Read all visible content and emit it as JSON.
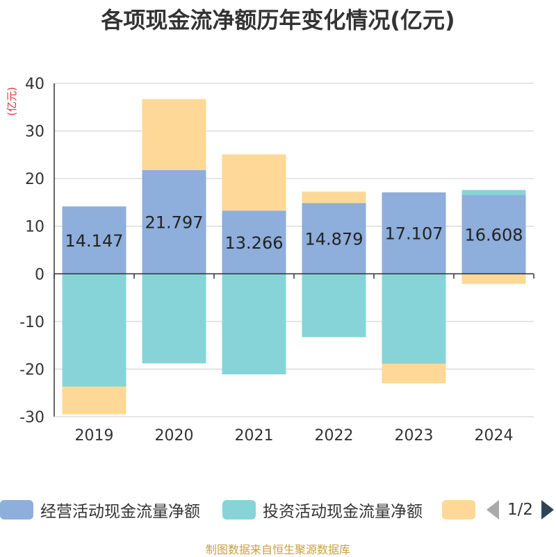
{
  "chart_data": {
    "type": "bar",
    "stacked": true,
    "title": "各项现金流净额历年变化情况(亿元)",
    "ylabel": "(亿元)",
    "categories": [
      "2019",
      "2020",
      "2021",
      "2022",
      "2023",
      "2024"
    ],
    "ylim": [
      -30,
      40
    ],
    "yticks": [
      40,
      30,
      20,
      10,
      0,
      -10,
      -20,
      -30
    ],
    "grid": true,
    "series": [
      {
        "name": "经营活动现金流量净额",
        "color": "#8eaedb",
        "values": [
          14.147,
          21.797,
          13.266,
          14.879,
          17.107,
          16.608
        ]
      },
      {
        "name": "投资活动现金流量净额",
        "color": "#86d4d8",
        "values": [
          -23.7,
          -18.8,
          -21.1,
          -13.3,
          -18.9,
          1.0
        ]
      },
      {
        "name": "",
        "color": "#fed896",
        "values": [
          -5.8,
          14.9,
          11.8,
          2.4,
          -4.1,
          -2.1
        ]
      }
    ],
    "data_labels": [
      "14.147",
      "21.797",
      "13.266",
      "14.879",
      "17.107",
      "16.608"
    ],
    "legend_position": "bottom"
  },
  "legend": {
    "items": [
      "经营活动现金流量净额",
      "投资活动现金流量净额",
      ""
    ],
    "page": "1/2"
  },
  "source": "制图数据来自恒生聚源数据库"
}
